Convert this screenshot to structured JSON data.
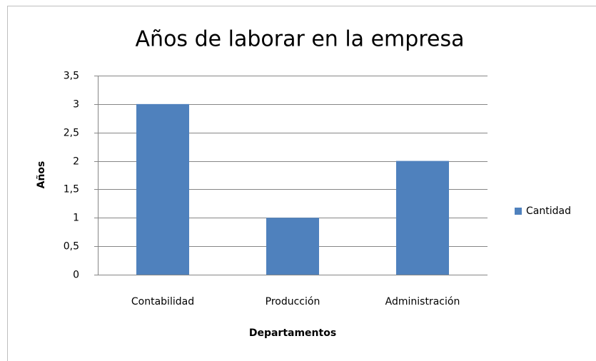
{
  "chart_data": {
    "type": "bar",
    "title": "Años de laborar en la empresa",
    "x_label": "Departamentos",
    "y_label": "Años",
    "categories": [
      "Contabilidad",
      "Producción",
      "Administración"
    ],
    "series": [
      {
        "name": "Cantidad",
        "color": "#4f81bd",
        "values": [
          3,
          1,
          2
        ]
      }
    ],
    "ylim": [
      0,
      3.5
    ],
    "yticks": [
      0,
      {
        "value": 0.5,
        "label": "0,5"
      },
      1,
      {
        "value": 1.5,
        "label": "1,5"
      },
      2,
      {
        "value": 2.5,
        "label": "2,5"
      },
      3,
      {
        "value": 3.5,
        "label": "3,5"
      }
    ],
    "grid": true,
    "legend": "right"
  }
}
